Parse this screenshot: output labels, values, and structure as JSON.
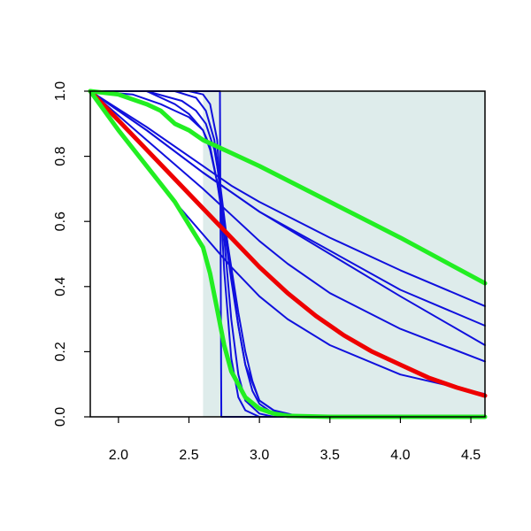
{
  "chart_data": {
    "type": "line",
    "title": "",
    "xlabel": "",
    "ylabel": "",
    "xlim": [
      1.8,
      4.6
    ],
    "ylim": [
      0.0,
      1.0
    ],
    "x_ticks": [
      "2.0",
      "2.5",
      "3.0",
      "3.5",
      "4.0",
      "4.5"
    ],
    "y_ticks": [
      "0.0",
      "0.2",
      "0.4",
      "0.6",
      "0.8",
      "1.0"
    ],
    "grid": false,
    "legend": "none",
    "shaded_region": {
      "x_from": 2.6,
      "x_to": 4.6,
      "y_from": 0.0,
      "y_to": 1.0,
      "color": "#deeceb"
    },
    "series": [
      {
        "color": "#1010dd",
        "style": "thin",
        "x": [
          1.8,
          2.7,
          2.72,
          2.73,
          4.6
        ],
        "y": [
          1.0,
          1.0,
          1.0,
          0.0,
          0.0
        ]
      },
      {
        "color": "#1010dd",
        "style": "thin",
        "x": [
          1.8,
          2.5,
          2.6,
          2.65,
          2.7,
          2.72,
          2.75,
          2.8,
          2.85,
          2.9,
          3.0,
          4.6
        ],
        "y": [
          1.0,
          1.0,
          0.99,
          0.96,
          0.85,
          0.7,
          0.45,
          0.18,
          0.06,
          0.02,
          0.0,
          0.0
        ]
      },
      {
        "color": "#1010dd",
        "style": "thin",
        "x": [
          1.8,
          2.4,
          2.55,
          2.62,
          2.68,
          2.72,
          2.76,
          2.8,
          2.85,
          2.9,
          3.0,
          3.1,
          4.6
        ],
        "y": [
          1.0,
          1.0,
          0.98,
          0.94,
          0.85,
          0.7,
          0.5,
          0.3,
          0.13,
          0.05,
          0.01,
          0.0,
          0.0
        ]
      },
      {
        "color": "#1010dd",
        "style": "thin",
        "x": [
          1.8,
          2.2,
          2.45,
          2.55,
          2.62,
          2.68,
          2.72,
          2.76,
          2.8,
          2.85,
          2.9,
          2.95,
          3.0,
          3.1,
          3.2,
          4.6
        ],
        "y": [
          1.0,
          1.0,
          0.97,
          0.94,
          0.9,
          0.82,
          0.72,
          0.58,
          0.44,
          0.28,
          0.16,
          0.08,
          0.04,
          0.01,
          0.0,
          0.0
        ]
      },
      {
        "color": "#1010dd",
        "style": "thin",
        "x": [
          1.8,
          2.2,
          2.4,
          2.5,
          2.6,
          2.65,
          2.7,
          2.75,
          2.8,
          2.85,
          2.9,
          2.95,
          3.0,
          3.1,
          3.2,
          3.3,
          4.6
        ],
        "y": [
          1.0,
          1.0,
          0.96,
          0.93,
          0.88,
          0.82,
          0.72,
          0.6,
          0.46,
          0.32,
          0.2,
          0.11,
          0.05,
          0.02,
          0.01,
          0.0,
          0.0
        ]
      },
      {
        "color": "#1010dd",
        "style": "thin",
        "x": [
          1.8,
          2.1,
          2.3,
          2.4,
          2.5,
          2.6,
          2.65,
          2.7,
          2.75,
          2.8,
          2.85,
          2.9,
          3.0,
          3.1,
          3.2,
          3.3,
          4.6
        ],
        "y": [
          1.0,
          0.99,
          0.96,
          0.94,
          0.92,
          0.88,
          0.83,
          0.72,
          0.58,
          0.42,
          0.28,
          0.16,
          0.05,
          0.02,
          0.005,
          0.0,
          0.0
        ]
      },
      {
        "color": "#1010dd",
        "style": "thin",
        "x": [
          1.8,
          2.2,
          2.6,
          2.8,
          3.0,
          3.5,
          4.0,
          4.6
        ],
        "y": [
          1.0,
          0.88,
          0.75,
          0.69,
          0.63,
          0.5,
          0.37,
          0.22
        ]
      },
      {
        "color": "#1010dd",
        "style": "thin",
        "x": [
          1.8,
          2.2,
          2.6,
          2.8,
          3.0,
          3.5,
          4.0,
          4.6
        ],
        "y": [
          1.0,
          0.88,
          0.75,
          0.69,
          0.63,
          0.51,
          0.39,
          0.28
        ]
      },
      {
        "color": "#1010dd",
        "style": "thin",
        "x": [
          1.8,
          2.2,
          2.6,
          2.8,
          3.0,
          3.5,
          4.0,
          4.6
        ],
        "y": [
          1.0,
          0.89,
          0.77,
          0.71,
          0.66,
          0.55,
          0.45,
          0.34
        ]
      },
      {
        "color": "#1010dd",
        "style": "thin",
        "x": [
          1.8,
          2.2,
          2.6,
          2.8,
          3.0,
          3.2,
          3.5,
          4.0,
          4.6
        ],
        "y": [
          1.0,
          0.85,
          0.7,
          0.62,
          0.54,
          0.47,
          0.38,
          0.27,
          0.17
        ]
      },
      {
        "color": "#1010dd",
        "style": "thin",
        "x": [
          1.8,
          2.1,
          2.4,
          2.6,
          2.8,
          3.0,
          3.2,
          3.5,
          4.0,
          4.6
        ],
        "y": [
          1.0,
          0.82,
          0.66,
          0.56,
          0.46,
          0.37,
          0.3,
          0.22,
          0.13,
          0.07
        ]
      },
      {
        "color": "#ee0000",
        "style": "thick",
        "x": [
          1.8,
          2.0,
          2.2,
          2.4,
          2.6,
          2.8,
          3.0,
          3.2,
          3.4,
          3.6,
          3.8,
          4.0,
          4.2,
          4.4,
          4.6
        ],
        "y": [
          1.0,
          0.91,
          0.82,
          0.73,
          0.64,
          0.55,
          0.46,
          0.38,
          0.31,
          0.25,
          0.2,
          0.16,
          0.12,
          0.09,
          0.065
        ]
      },
      {
        "color": "#22ee22",
        "style": "thick",
        "x": [
          1.8,
          2.0,
          2.2,
          2.3,
          2.4,
          2.5,
          2.6,
          2.8,
          3.0,
          3.5,
          4.0,
          4.6
        ],
        "y": [
          1.0,
          0.99,
          0.96,
          0.94,
          0.9,
          0.88,
          0.85,
          0.81,
          0.77,
          0.66,
          0.55,
          0.41
        ]
      },
      {
        "color": "#22ee22",
        "style": "thick",
        "x": [
          1.8,
          2.0,
          2.2,
          2.4,
          2.5,
          2.6,
          2.65,
          2.7,
          2.75,
          2.8,
          2.9,
          3.0,
          3.1,
          3.2,
          3.5,
          4.0,
          4.6
        ],
        "y": [
          1.0,
          0.88,
          0.77,
          0.66,
          0.59,
          0.52,
          0.44,
          0.33,
          0.22,
          0.14,
          0.06,
          0.025,
          0.01,
          0.003,
          0.0,
          0.0,
          0.0
        ]
      }
    ]
  }
}
